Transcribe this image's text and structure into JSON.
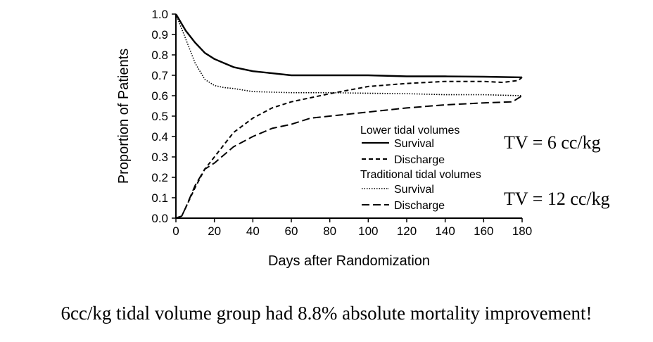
{
  "chart_data": {
    "type": "line",
    "xlabel": "Days after Randomization",
    "ylabel": "Proportion of Patients",
    "xlim": [
      0,
      180
    ],
    "ylim": [
      0,
      1.0
    ],
    "x_ticks": [
      "0",
      "20",
      "40",
      "60",
      "80",
      "100",
      "120",
      "140",
      "160",
      "180"
    ],
    "y_ticks": [
      "0.0",
      "0.1",
      "0.2",
      "0.3",
      "0.4",
      "0.5",
      "0.6",
      "0.7",
      "0.8",
      "0.9",
      "1.0"
    ],
    "grid": false,
    "legend_position": "lower-right",
    "legend_groups": [
      {
        "title": "Lower tidal volumes",
        "entries": [
          "Survival",
          "Discharge"
        ]
      },
      {
        "title": "Traditional tidal volumes",
        "entries": [
          "Survival",
          "Discharge"
        ]
      }
    ],
    "series": [
      {
        "name": "Survival",
        "group": "Lower tidal volumes",
        "style": "solid",
        "x": [
          0,
          5,
          10,
          15,
          20,
          25,
          30,
          40,
          50,
          60,
          80,
          100,
          120,
          140,
          160,
          180
        ],
        "y": [
          1.0,
          0.92,
          0.86,
          0.81,
          0.78,
          0.76,
          0.74,
          0.72,
          0.71,
          0.7,
          0.7,
          0.7,
          0.695,
          0.695,
          0.693,
          0.69
        ]
      },
      {
        "name": "Discharge",
        "group": "Lower tidal volumes",
        "style": "dashed",
        "x": [
          0,
          3,
          5,
          10,
          15,
          20,
          25,
          30,
          40,
          50,
          60,
          80,
          100,
          120,
          140,
          160,
          170,
          178,
          180
        ],
        "y": [
          0.0,
          0.01,
          0.05,
          0.15,
          0.24,
          0.3,
          0.36,
          0.42,
          0.49,
          0.54,
          0.57,
          0.61,
          0.645,
          0.66,
          0.67,
          0.67,
          0.665,
          0.675,
          0.69
        ]
      },
      {
        "name": "Survival",
        "group": "Traditional tidal volumes",
        "style": "dotted",
        "x": [
          0,
          5,
          10,
          15,
          20,
          25,
          30,
          40,
          60,
          80,
          100,
          120,
          140,
          160,
          180
        ],
        "y": [
          1.0,
          0.88,
          0.76,
          0.68,
          0.65,
          0.64,
          0.635,
          0.62,
          0.615,
          0.615,
          0.612,
          0.61,
          0.605,
          0.605,
          0.6
        ]
      },
      {
        "name": "Discharge",
        "group": "Traditional tidal volumes",
        "style": "longdash",
        "x": [
          0,
          3,
          5,
          10,
          15,
          20,
          25,
          30,
          40,
          50,
          60,
          70,
          80,
          100,
          120,
          140,
          160,
          175,
          180
        ],
        "y": [
          0.0,
          0.01,
          0.05,
          0.16,
          0.24,
          0.27,
          0.31,
          0.35,
          0.4,
          0.44,
          0.46,
          0.49,
          0.5,
          0.52,
          0.54,
          0.555,
          0.565,
          0.57,
          0.6
        ]
      }
    ]
  },
  "annotations": {
    "tv_low": "TV = 6 cc/kg",
    "tv_high": "TV = 12 cc/kg",
    "caption": "6cc/kg tidal volume group had 8.8% absolute mortality improvement!"
  }
}
